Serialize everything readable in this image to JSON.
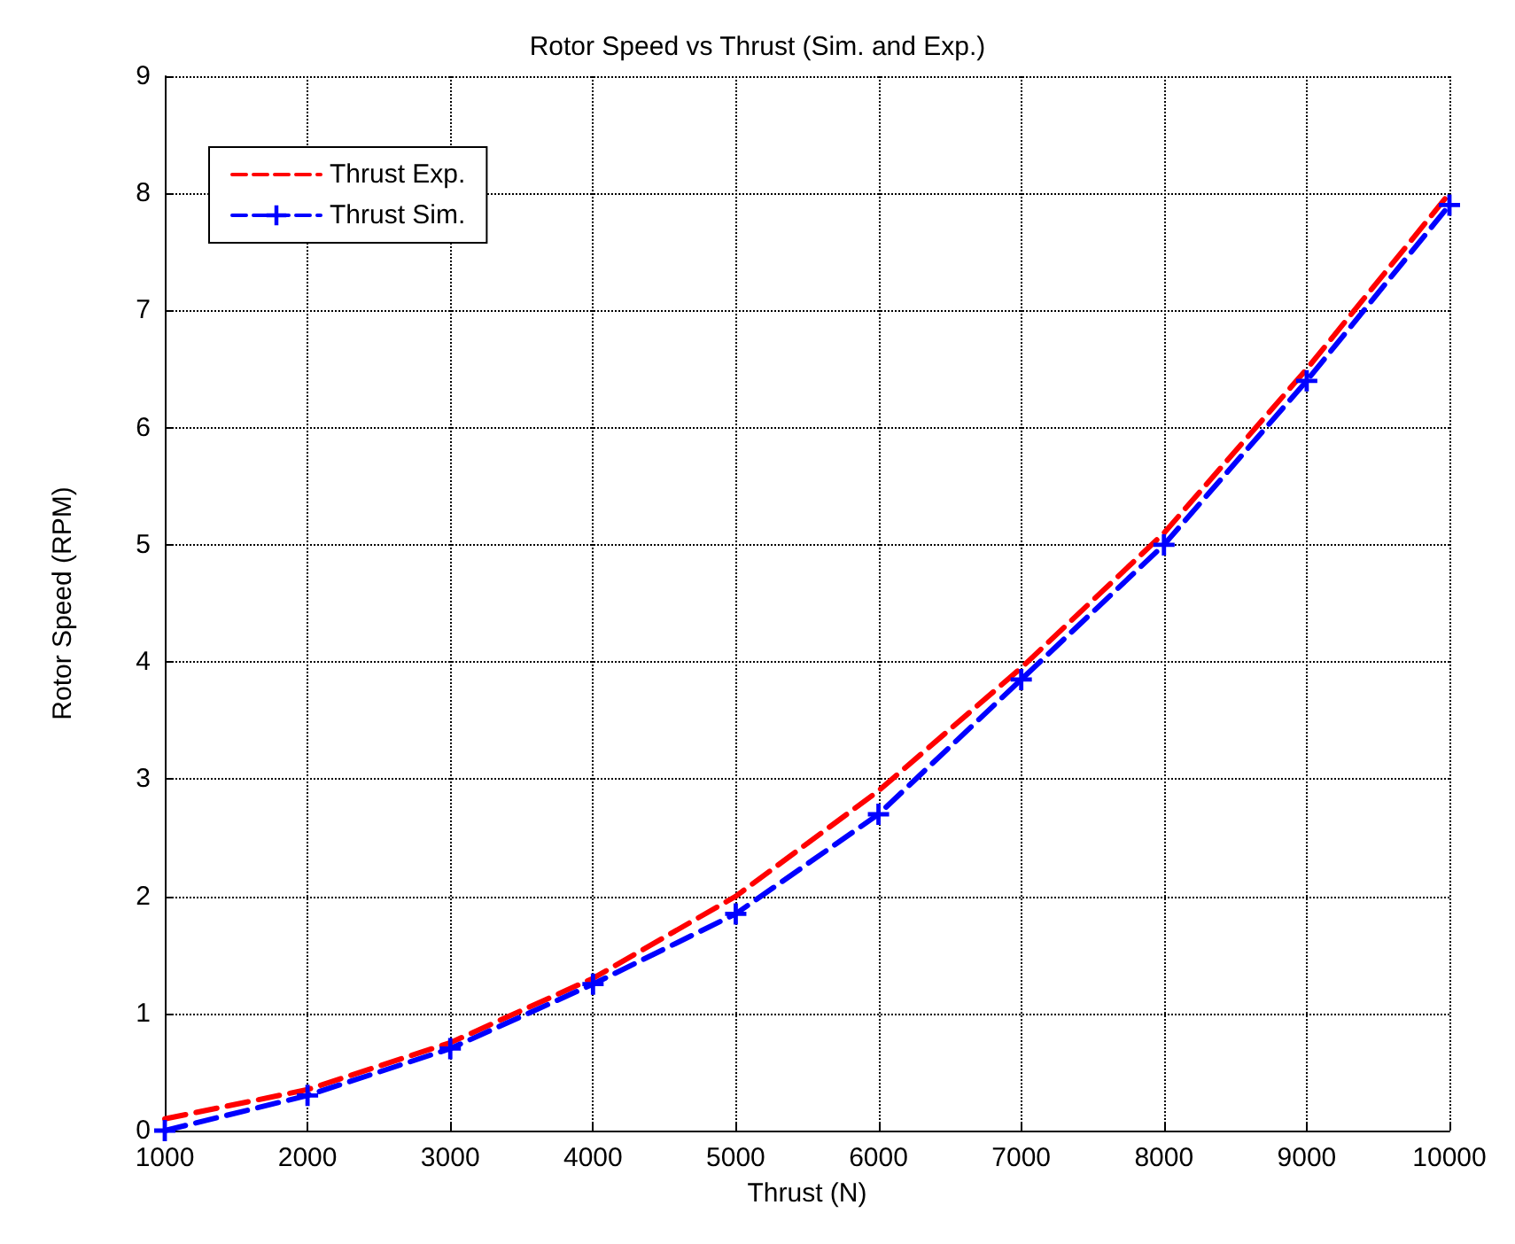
{
  "chart_data": {
    "type": "line",
    "title": "Rotor Speed vs Thrust (Sim. and Exp.)",
    "xlabel": "Thrust (N)",
    "ylabel": "Rotor Speed (RPM)",
    "x": [
      1000,
      2000,
      3000,
      4000,
      5000,
      6000,
      7000,
      8000,
      9000,
      10000
    ],
    "series": [
      {
        "name": "Thrust Exp.",
        "color": "#ff0000",
        "marker": "none",
        "values": [
          0.1,
          0.35,
          0.75,
          1.3,
          2.0,
          2.9,
          3.95,
          5.1,
          6.5,
          8.0
        ]
      },
      {
        "name": "Thrust Sim.",
        "color": "#0000ff",
        "marker": "cross",
        "values": [
          0,
          0.3,
          0.7,
          1.25,
          1.85,
          2.7,
          3.85,
          5.0,
          6.4,
          7.9
        ]
      }
    ],
    "xlim": [
      1000,
      10000
    ],
    "xticks": [
      1000,
      2000,
      3000,
      4000,
      5000,
      6000,
      7000,
      8000,
      9000,
      10000
    ],
    "ylim": [
      0,
      9
    ],
    "yticks": [
      0,
      1,
      2,
      3,
      4,
      5,
      6,
      7,
      8,
      9
    ],
    "grid": true,
    "legend": "top left",
    "line_style": "dashed"
  }
}
